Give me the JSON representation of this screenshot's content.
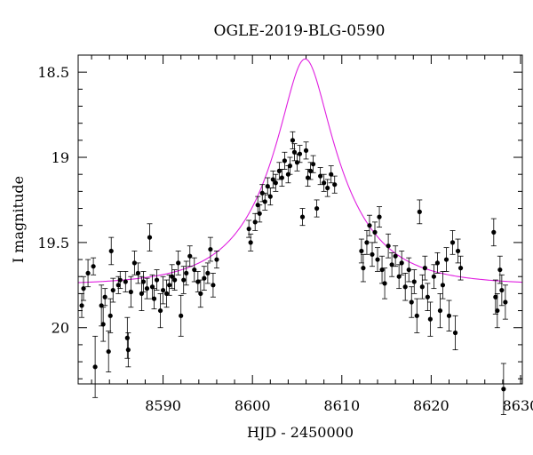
{
  "chart_data": {
    "type": "scatter",
    "title": "OGLE-2019-BLG-0590",
    "xlabel": "HJD - 2450000",
    "ylabel": "I magnitude",
    "xlim": [
      8580.5,
      8630.2
    ],
    "ylim": [
      20.33,
      18.4
    ],
    "y_inverted": true,
    "x_ticks": [
      8590,
      8600,
      8610,
      8620,
      8630
    ],
    "y_ticks": [
      18.5,
      19,
      19.5,
      20
    ],
    "x_tick_labels": [
      "8590",
      "8600",
      "8610",
      "8620",
      "8630"
    ],
    "y_tick_labels": [
      "18.5",
      "19",
      "19.5",
      "20"
    ],
    "x_minor_step": 2,
    "y_minor_step": 0.1,
    "grid": false,
    "fit_color": "#e020e0",
    "point_color": "#000000",
    "model": {
      "t0": 8605.9,
      "u0": 0.3,
      "tE": 8.0,
      "base_mag": 19.75,
      "fs": 0.98
    },
    "series": [
      {
        "points": [
          {
            "x": 8580.9,
            "y": 19.87,
            "e": 0.07
          },
          {
            "x": 8581.1,
            "y": 19.77,
            "e": 0.07
          },
          {
            "x": 8581.6,
            "y": 19.68,
            "e": 0.08
          },
          {
            "x": 8582.2,
            "y": 19.64,
            "e": 0.05
          },
          {
            "x": 8582.4,
            "y": 20.23,
            "e": 0.18
          },
          {
            "x": 8583.1,
            "y": 19.87,
            "e": 0.12
          },
          {
            "x": 8583.3,
            "y": 19.98,
            "e": 0.1
          },
          {
            "x": 8583.5,
            "y": 19.82,
            "e": 0.05
          },
          {
            "x": 8583.9,
            "y": 20.14,
            "e": 0.12
          },
          {
            "x": 8584.1,
            "y": 19.93,
            "e": 0.1
          },
          {
            "x": 8584.2,
            "y": 19.55,
            "e": 0.08
          },
          {
            "x": 8584.4,
            "y": 19.78,
            "e": 0.07
          },
          {
            "x": 8585.0,
            "y": 19.75,
            "e": 0.05
          },
          {
            "x": 8585.2,
            "y": 19.72,
            "e": 0.05
          },
          {
            "x": 8585.8,
            "y": 19.73,
            "e": 0.06
          },
          {
            "x": 8586.0,
            "y": 20.06,
            "e": 0.12
          },
          {
            "x": 8586.1,
            "y": 20.13,
            "e": 0.1
          },
          {
            "x": 8586.4,
            "y": 19.79,
            "e": 0.09
          },
          {
            "x": 8586.8,
            "y": 19.62,
            "e": 0.07
          },
          {
            "x": 8587.2,
            "y": 19.68,
            "e": 0.06
          },
          {
            "x": 8587.6,
            "y": 19.8,
            "e": 0.1
          },
          {
            "x": 8587.8,
            "y": 19.73,
            "e": 0.06
          },
          {
            "x": 8588.2,
            "y": 19.77,
            "e": 0.06
          },
          {
            "x": 8588.5,
            "y": 19.47,
            "e": 0.08
          },
          {
            "x": 8588.8,
            "y": 19.76,
            "e": 0.07
          },
          {
            "x": 8589.0,
            "y": 19.83,
            "e": 0.06
          },
          {
            "x": 8589.3,
            "y": 19.72,
            "e": 0.06
          },
          {
            "x": 8589.7,
            "y": 19.9,
            "e": 0.1
          },
          {
            "x": 8590.0,
            "y": 19.78,
            "e": 0.08
          },
          {
            "x": 8590.4,
            "y": 19.8,
            "e": 0.08
          },
          {
            "x": 8590.7,
            "y": 19.75,
            "e": 0.06
          },
          {
            "x": 8591.0,
            "y": 19.7,
            "e": 0.07
          },
          {
            "x": 8591.3,
            "y": 19.72,
            "e": 0.06
          },
          {
            "x": 8591.7,
            "y": 19.62,
            "e": 0.07
          },
          {
            "x": 8592.0,
            "y": 19.93,
            "e": 0.12
          },
          {
            "x": 8592.3,
            "y": 19.72,
            "e": 0.08
          },
          {
            "x": 8592.6,
            "y": 19.68,
            "e": 0.07
          },
          {
            "x": 8593.0,
            "y": 19.58,
            "e": 0.06
          },
          {
            "x": 8593.5,
            "y": 19.66,
            "e": 0.07
          },
          {
            "x": 8593.9,
            "y": 19.73,
            "e": 0.06
          },
          {
            "x": 8594.2,
            "y": 19.8,
            "e": 0.08
          },
          {
            "x": 8594.6,
            "y": 19.71,
            "e": 0.07
          },
          {
            "x": 8595.0,
            "y": 19.68,
            "e": 0.06
          },
          {
            "x": 8595.3,
            "y": 19.54,
            "e": 0.07
          },
          {
            "x": 8595.6,
            "y": 19.75,
            "e": 0.07
          },
          {
            "x": 8596.0,
            "y": 19.6,
            "e": 0.05
          },
          {
            "x": 8599.6,
            "y": 19.42,
            "e": 0.05
          },
          {
            "x": 8599.8,
            "y": 19.5,
            "e": 0.05
          },
          {
            "x": 8600.3,
            "y": 19.38,
            "e": 0.05
          },
          {
            "x": 8600.6,
            "y": 19.28,
            "e": 0.05
          },
          {
            "x": 8600.8,
            "y": 19.33,
            "e": 0.05
          },
          {
            "x": 8601.1,
            "y": 19.21,
            "e": 0.05
          },
          {
            "x": 8601.4,
            "y": 19.26,
            "e": 0.05
          },
          {
            "x": 8601.7,
            "y": 19.17,
            "e": 0.05
          },
          {
            "x": 8602.0,
            "y": 19.23,
            "e": 0.05
          },
          {
            "x": 8602.3,
            "y": 19.13,
            "e": 0.05
          },
          {
            "x": 8602.6,
            "y": 19.15,
            "e": 0.05
          },
          {
            "x": 8603.0,
            "y": 19.08,
            "e": 0.05
          },
          {
            "x": 8603.3,
            "y": 19.12,
            "e": 0.05
          },
          {
            "x": 8603.6,
            "y": 19.02,
            "e": 0.05
          },
          {
            "x": 8604.0,
            "y": 19.1,
            "e": 0.05
          },
          {
            "x": 8604.2,
            "y": 19.05,
            "e": 0.05
          },
          {
            "x": 8604.5,
            "y": 18.9,
            "e": 0.05
          },
          {
            "x": 8604.7,
            "y": 18.97,
            "e": 0.05
          },
          {
            "x": 8605.0,
            "y": 19.03,
            "e": 0.05
          },
          {
            "x": 8605.3,
            "y": 18.98,
            "e": 0.05
          },
          {
            "x": 8605.6,
            "y": 19.35,
            "e": 0.05
          },
          {
            "x": 8606.0,
            "y": 18.96,
            "e": 0.05
          },
          {
            "x": 8606.2,
            "y": 19.12,
            "e": 0.05
          },
          {
            "x": 8606.5,
            "y": 19.08,
            "e": 0.05
          },
          {
            "x": 8606.8,
            "y": 19.04,
            "e": 0.05
          },
          {
            "x": 8607.2,
            "y": 19.3,
            "e": 0.05
          },
          {
            "x": 8607.6,
            "y": 19.11,
            "e": 0.05
          },
          {
            "x": 8608.0,
            "y": 19.15,
            "e": 0.05
          },
          {
            "x": 8608.4,
            "y": 19.18,
            "e": 0.05
          },
          {
            "x": 8608.8,
            "y": 19.1,
            "e": 0.05
          },
          {
            "x": 8609.2,
            "y": 19.16,
            "e": 0.05
          },
          {
            "x": 8612.2,
            "y": 19.55,
            "e": 0.07
          },
          {
            "x": 8612.4,
            "y": 19.65,
            "e": 0.08
          },
          {
            "x": 8612.8,
            "y": 19.5,
            "e": 0.07
          },
          {
            "x": 8613.1,
            "y": 19.4,
            "e": 0.06
          },
          {
            "x": 8613.4,
            "y": 19.57,
            "e": 0.07
          },
          {
            "x": 8613.7,
            "y": 19.44,
            "e": 0.06
          },
          {
            "x": 8614.0,
            "y": 19.6,
            "e": 0.07
          },
          {
            "x": 8614.2,
            "y": 19.35,
            "e": 0.06
          },
          {
            "x": 8614.5,
            "y": 19.66,
            "e": 0.08
          },
          {
            "x": 8614.8,
            "y": 19.74,
            "e": 0.09
          },
          {
            "x": 8615.2,
            "y": 19.52,
            "e": 0.07
          },
          {
            "x": 8615.6,
            "y": 19.63,
            "e": 0.07
          },
          {
            "x": 8616.0,
            "y": 19.58,
            "e": 0.06
          },
          {
            "x": 8616.4,
            "y": 19.7,
            "e": 0.07
          },
          {
            "x": 8616.7,
            "y": 19.62,
            "e": 0.07
          },
          {
            "x": 8617.1,
            "y": 19.76,
            "e": 0.08
          },
          {
            "x": 8617.5,
            "y": 19.66,
            "e": 0.07
          },
          {
            "x": 8617.8,
            "y": 19.85,
            "e": 0.09
          },
          {
            "x": 8618.1,
            "y": 19.73,
            "e": 0.07
          },
          {
            "x": 8618.4,
            "y": 19.93,
            "e": 0.1
          },
          {
            "x": 8618.7,
            "y": 19.32,
            "e": 0.07
          },
          {
            "x": 8619.0,
            "y": 19.76,
            "e": 0.07
          },
          {
            "x": 8619.3,
            "y": 19.65,
            "e": 0.07
          },
          {
            "x": 8619.6,
            "y": 19.82,
            "e": 0.08
          },
          {
            "x": 8619.9,
            "y": 19.95,
            "e": 0.1
          },
          {
            "x": 8620.3,
            "y": 19.7,
            "e": 0.07
          },
          {
            "x": 8620.7,
            "y": 19.62,
            "e": 0.06
          },
          {
            "x": 8621.0,
            "y": 19.9,
            "e": 0.1
          },
          {
            "x": 8621.3,
            "y": 19.75,
            "e": 0.08
          },
          {
            "x": 8621.7,
            "y": 19.6,
            "e": 0.07
          },
          {
            "x": 8622.0,
            "y": 19.93,
            "e": 0.09
          },
          {
            "x": 8622.4,
            "y": 19.5,
            "e": 0.07
          },
          {
            "x": 8622.7,
            "y": 20.03,
            "e": 0.1
          },
          {
            "x": 8623.0,
            "y": 19.55,
            "e": 0.07
          },
          {
            "x": 8623.3,
            "y": 19.65,
            "e": 0.07
          },
          {
            "x": 8627.0,
            "y": 19.44,
            "e": 0.08
          },
          {
            "x": 8627.2,
            "y": 19.82,
            "e": 0.1
          },
          {
            "x": 8627.4,
            "y": 19.9,
            "e": 0.1
          },
          {
            "x": 8627.7,
            "y": 19.66,
            "e": 0.08
          },
          {
            "x": 8627.9,
            "y": 19.78,
            "e": 0.09
          },
          {
            "x": 8628.1,
            "y": 20.36,
            "e": 0.15
          },
          {
            "x": 8628.3,
            "y": 19.85,
            "e": 0.1
          }
        ]
      }
    ]
  }
}
